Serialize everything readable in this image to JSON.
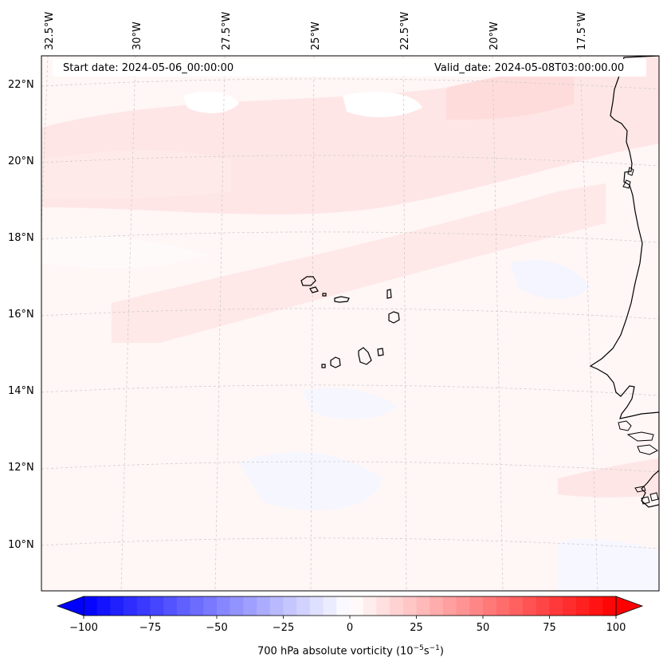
{
  "map": {
    "lon_labels": [
      "32.5°W",
      "30°W",
      "27.5°W",
      "25°W",
      "22.5°W",
      "20°W",
      "17.5°W"
    ],
    "lat_labels": [
      "22°N",
      "20°N",
      "18°N",
      "16°N",
      "14°N",
      "12°N",
      "10°N"
    ],
    "start_date": "Start date: 2024-05-06_00:00:00",
    "valid_date": "Valid_date: 2024-05-08T03:00:00.00",
    "colors": {
      "land_line": "#000000",
      "grid": "#c8c8c8",
      "background": "#fff6f6",
      "band": "#ffe2e2"
    }
  },
  "colorbar": {
    "ticks": [
      "−100",
      "−75",
      "−50",
      "−25",
      "0",
      "25",
      "50",
      "75",
      "100"
    ],
    "tick_values": [
      -100,
      -75,
      -50,
      -25,
      0,
      25,
      50,
      75,
      100
    ],
    "label": "700 hPa absolute vorticity (10",
    "label_exp1": "−5",
    "label_mid": "s",
    "label_exp2": "−1",
    "label_end": ")",
    "cmap": "bwr",
    "range": [
      -100,
      100
    ]
  }
}
